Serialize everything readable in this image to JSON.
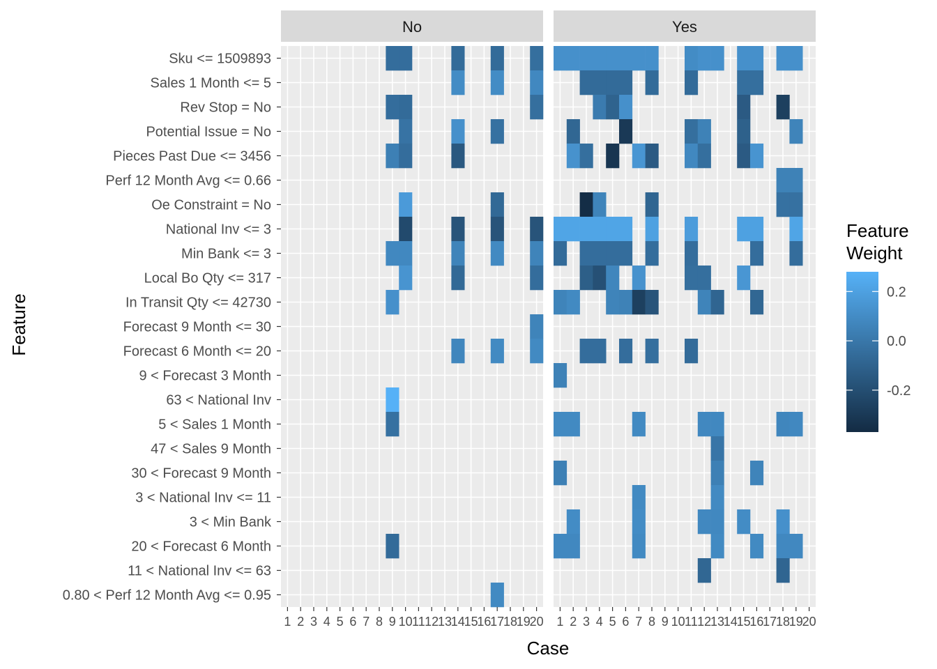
{
  "chart_data": {
    "type": "heatmap",
    "title": "",
    "xlabel": "Case",
    "ylabel": "Feature",
    "cases": [
      "1",
      "2",
      "3",
      "4",
      "5",
      "6",
      "7",
      "8",
      "9",
      "10",
      "11",
      "12",
      "13",
      "14",
      "15",
      "16",
      "17",
      "18",
      "19",
      "20"
    ],
    "features": [
      "Sku <= 1509893",
      "Sales 1 Month <= 5",
      "Rev Stop = No",
      "Potential Issue = No",
      "Pieces Past Due <= 3456",
      "Perf 12 Month Avg <= 0.66",
      "Oe Constraint = No",
      "National Inv <= 3",
      "Min Bank <= 3",
      "Local Bo Qty <= 317",
      "In Transit Qty <= 42730",
      "Forecast 9 Month <= 30",
      "Forecast 6 Month <= 20",
      "9 < Forecast 3 Month",
      "63 < National Inv",
      "5 < Sales 1 Month",
      "47 < Sales 9 Month",
      "30 < Forecast 9 Month",
      "3 < National Inv <= 11",
      "3 < Min Bank",
      "20 < Forecast 6 Month",
      "11 < National Inv <= 63",
      "0.80 < Perf 12 Month Avg <= 0.95"
    ],
    "panels": [
      {
        "label": "No",
        "cells": [
          [
            "Sku <= 1509893",
            9,
            -0.05
          ],
          [
            "Sku <= 1509893",
            10,
            -0.05
          ],
          [
            "Sku <= 1509893",
            14,
            -0.06
          ],
          [
            "Sku <= 1509893",
            17,
            -0.06
          ],
          [
            "Sku <= 1509893",
            20,
            -0.04
          ],
          [
            "Sales 1 Month <= 5",
            14,
            0.1
          ],
          [
            "Sales 1 Month <= 5",
            17,
            0.1
          ],
          [
            "Sales 1 Month <= 5",
            20,
            0.08
          ],
          [
            "Rev Stop = No",
            9,
            -0.05
          ],
          [
            "Rev Stop = No",
            10,
            -0.06
          ],
          [
            "Rev Stop = No",
            20,
            -0.04
          ],
          [
            "Potential Issue = No",
            10,
            -0.02
          ],
          [
            "Potential Issue = No",
            14,
            0.12
          ],
          [
            "Potential Issue = No",
            17,
            -0.03
          ],
          [
            "Pieces Past Due <= 3456",
            9,
            0.04
          ],
          [
            "Pieces Past Due <= 3456",
            10,
            -0.05
          ],
          [
            "Pieces Past Due <= 3456",
            14,
            -0.15
          ],
          [
            "Oe Constraint = No",
            10,
            0.17
          ],
          [
            "Oe Constraint = No",
            17,
            -0.07
          ],
          [
            "National Inv <= 3",
            10,
            -0.22
          ],
          [
            "National Inv <= 3",
            14,
            -0.17
          ],
          [
            "National Inv <= 3",
            17,
            -0.17
          ],
          [
            "National Inv <= 3",
            20,
            -0.17
          ],
          [
            "Min Bank <= 3",
            9,
            0.08
          ],
          [
            "Min Bank <= 3",
            10,
            0.08
          ],
          [
            "Min Bank <= 3",
            14,
            0.06
          ],
          [
            "Min Bank <= 3",
            17,
            0.09
          ],
          [
            "Min Bank <= 3",
            20,
            0.06
          ],
          [
            "Local Bo Qty <= 317",
            10,
            0.14
          ],
          [
            "Local Bo Qty <= 317",
            14,
            -0.07
          ],
          [
            "Local Bo Qty <= 317",
            20,
            -0.05
          ],
          [
            "In Transit Qty <= 42730",
            9,
            0.12
          ],
          [
            "Forecast 9 Month <= 30",
            20,
            0.06
          ],
          [
            "Forecast 6 Month <= 20",
            14,
            0.07
          ],
          [
            "Forecast 6 Month <= 20",
            17,
            0.09
          ],
          [
            "Forecast 6 Month <= 20",
            20,
            0.09
          ],
          [
            "63 < National Inv",
            9,
            0.28
          ],
          [
            "5 < Sales 1 Month",
            9,
            -0.03
          ],
          [
            "20 < Forecast 6 Month",
            9,
            -0.06
          ],
          [
            "0.80 < Perf 12 Month Avg <= 0.95",
            17,
            0.09
          ]
        ]
      },
      {
        "label": "Yes",
        "cells": [
          [
            "Sku <= 1509893",
            1,
            0.12
          ],
          [
            "Sku <= 1509893",
            2,
            0.12
          ],
          [
            "Sku <= 1509893",
            3,
            0.12
          ],
          [
            "Sku <= 1509893",
            4,
            0.12
          ],
          [
            "Sku <= 1509893",
            5,
            0.12
          ],
          [
            "Sku <= 1509893",
            6,
            0.12
          ],
          [
            "Sku <= 1509893",
            7,
            0.12
          ],
          [
            "Sku <= 1509893",
            8,
            0.12
          ],
          [
            "Sku <= 1509893",
            11,
            0.1
          ],
          [
            "Sku <= 1509893",
            12,
            0.12
          ],
          [
            "Sku <= 1509893",
            13,
            0.12
          ],
          [
            "Sku <= 1509893",
            15,
            0.12
          ],
          [
            "Sku <= 1509893",
            16,
            0.12
          ],
          [
            "Sku <= 1509893",
            18,
            0.12
          ],
          [
            "Sku <= 1509893",
            19,
            0.12
          ],
          [
            "Sales 1 Month <= 5",
            3,
            -0.06
          ],
          [
            "Sales 1 Month <= 5",
            4,
            -0.06
          ],
          [
            "Sales 1 Month <= 5",
            5,
            -0.06
          ],
          [
            "Sales 1 Month <= 5",
            6,
            -0.06
          ],
          [
            "Sales 1 Month <= 5",
            8,
            -0.06
          ],
          [
            "Sales 1 Month <= 5",
            11,
            -0.06
          ],
          [
            "Sales 1 Month <= 5",
            15,
            -0.04
          ],
          [
            "Sales 1 Month <= 5",
            16,
            -0.04
          ],
          [
            "Rev Stop = No",
            4,
            0.02
          ],
          [
            "Rev Stop = No",
            5,
            -0.1
          ],
          [
            "Rev Stop = No",
            6,
            0.12
          ],
          [
            "Rev Stop = No",
            15,
            -0.14
          ],
          [
            "Rev Stop = No",
            18,
            -0.27
          ],
          [
            "Potential Issue = No",
            2,
            -0.08
          ],
          [
            "Potential Issue = No",
            6,
            -0.3
          ],
          [
            "Potential Issue = No",
            11,
            -0.04
          ],
          [
            "Potential Issue = No",
            12,
            0.05
          ],
          [
            "Potential Issue = No",
            15,
            -0.11
          ],
          [
            "Potential Issue = No",
            19,
            0.06
          ],
          [
            "Pieces Past Due <= 3456",
            2,
            0.13
          ],
          [
            "Pieces Past Due <= 3456",
            3,
            -0.04
          ],
          [
            "Pieces Past Due <= 3456",
            5,
            -0.32
          ],
          [
            "Pieces Past Due <= 3456",
            7,
            0.15
          ],
          [
            "Pieces Past Due <= 3456",
            8,
            -0.14
          ],
          [
            "Pieces Past Due <= 3456",
            11,
            0.08
          ],
          [
            "Pieces Past Due <= 3456",
            12,
            -0.04
          ],
          [
            "Pieces Past Due <= 3456",
            15,
            -0.14
          ],
          [
            "Pieces Past Due <= 3456",
            16,
            0.14
          ],
          [
            "Perf 12 Month Avg <= 0.66",
            18,
            0.05
          ],
          [
            "Perf 12 Month Avg <= 0.66",
            19,
            0.05
          ],
          [
            "Oe Constraint = No",
            3,
            -0.36
          ],
          [
            "Oe Constraint = No",
            4,
            0.06
          ],
          [
            "Oe Constraint = No",
            8,
            -0.09
          ],
          [
            "Oe Constraint = No",
            18,
            -0.03
          ],
          [
            "Oe Constraint = No",
            19,
            -0.03
          ],
          [
            "National Inv <= 3",
            1,
            0.22
          ],
          [
            "National Inv <= 3",
            2,
            0.22
          ],
          [
            "National Inv <= 3",
            3,
            0.22
          ],
          [
            "National Inv <= 3",
            4,
            0.22
          ],
          [
            "National Inv <= 3",
            5,
            0.22
          ],
          [
            "National Inv <= 3",
            6,
            0.22
          ],
          [
            "National Inv <= 3",
            8,
            0.2
          ],
          [
            "National Inv <= 3",
            11,
            0.18
          ],
          [
            "National Inv <= 3",
            15,
            0.2
          ],
          [
            "National Inv <= 3",
            16,
            0.2
          ],
          [
            "National Inv <= 3",
            19,
            0.22
          ],
          [
            "Min Bank <= 3",
            1,
            -0.06
          ],
          [
            "Min Bank <= 3",
            3,
            -0.05
          ],
          [
            "Min Bank <= 3",
            4,
            -0.05
          ],
          [
            "Min Bank <= 3",
            5,
            -0.05
          ],
          [
            "Min Bank <= 3",
            6,
            -0.05
          ],
          [
            "Min Bank <= 3",
            8,
            -0.05
          ],
          [
            "Min Bank <= 3",
            11,
            -0.05
          ],
          [
            "Min Bank <= 3",
            16,
            -0.05
          ],
          [
            "Min Bank <= 3",
            19,
            -0.05
          ],
          [
            "Local Bo Qty <= 317",
            3,
            -0.12
          ],
          [
            "Local Bo Qty <= 317",
            4,
            -0.19
          ],
          [
            "Local Bo Qty <= 317",
            5,
            0.07
          ],
          [
            "Local Bo Qty <= 317",
            7,
            0.13
          ],
          [
            "Local Bo Qty <= 317",
            11,
            -0.04
          ],
          [
            "Local Bo Qty <= 317",
            12,
            -0.04
          ],
          [
            "Local Bo Qty <= 317",
            15,
            0.15
          ],
          [
            "In Transit Qty <= 42730",
            1,
            0.06
          ],
          [
            "In Transit Qty <= 42730",
            2,
            0.09
          ],
          [
            "In Transit Qty <= 42730",
            5,
            0.06
          ],
          [
            "In Transit Qty <= 42730",
            6,
            0.05
          ],
          [
            "In Transit Qty <= 42730",
            7,
            -0.27
          ],
          [
            "In Transit Qty <= 42730",
            8,
            -0.17
          ],
          [
            "In Transit Qty <= 42730",
            12,
            0.06
          ],
          [
            "In Transit Qty <= 42730",
            13,
            -0.09
          ],
          [
            "In Transit Qty <= 42730",
            16,
            -0.08
          ],
          [
            "Forecast 6 Month <= 20",
            3,
            -0.05
          ],
          [
            "Forecast 6 Month <= 20",
            4,
            -0.05
          ],
          [
            "Forecast 6 Month <= 20",
            6,
            -0.05
          ],
          [
            "Forecast 6 Month <= 20",
            8,
            -0.04
          ],
          [
            "Forecast 6 Month <= 20",
            11,
            -0.06
          ],
          [
            "9 < Forecast 3 Month",
            1,
            0.05
          ],
          [
            "5 < Sales 1 Month",
            1,
            0.09
          ],
          [
            "5 < Sales 1 Month",
            2,
            0.09
          ],
          [
            "5 < Sales 1 Month",
            7,
            0.09
          ],
          [
            "5 < Sales 1 Month",
            12,
            0.08
          ],
          [
            "5 < Sales 1 Month",
            13,
            0.08
          ],
          [
            "5 < Sales 1 Month",
            18,
            0.07
          ],
          [
            "5 < Sales 1 Month",
            19,
            0.08
          ],
          [
            "47 < Sales 9 Month",
            13,
            -0.01
          ],
          [
            "30 < Forecast 9 Month",
            1,
            0.04
          ],
          [
            "30 < Forecast 9 Month",
            13,
            0.04
          ],
          [
            "30 < Forecast 9 Month",
            16,
            0.06
          ],
          [
            "3 < National Inv <= 11",
            7,
            0.09
          ],
          [
            "3 < National Inv <= 11",
            13,
            0.09
          ],
          [
            "3 < Min Bank",
            2,
            0.1
          ],
          [
            "3 < Min Bank",
            7,
            0.1
          ],
          [
            "3 < Min Bank",
            12,
            0.08
          ],
          [
            "3 < Min Bank",
            13,
            0.08
          ],
          [
            "3 < Min Bank",
            15,
            0.1
          ],
          [
            "3 < Min Bank",
            18,
            0.12
          ],
          [
            "20 < Forecast 6 Month",
            1,
            0.08
          ],
          [
            "20 < Forecast 6 Month",
            2,
            0.08
          ],
          [
            "20 < Forecast 6 Month",
            7,
            0.09
          ],
          [
            "20 < Forecast 6 Month",
            13,
            0.09
          ],
          [
            "20 < Forecast 6 Month",
            16,
            0.09
          ],
          [
            "20 < Forecast 6 Month",
            18,
            0.08
          ],
          [
            "20 < Forecast 6 Month",
            19,
            0.08
          ],
          [
            "11 < National Inv <= 63",
            12,
            -0.08
          ],
          [
            "11 < National Inv <= 63",
            18,
            -0.09
          ]
        ]
      }
    ],
    "legend": {
      "title_lines": [
        "Feature",
        "Weight"
      ],
      "ticks": [
        "0.2",
        "0.0",
        "-0.2"
      ],
      "tick_values": [
        0.2,
        0.0,
        -0.2
      ],
      "min": -0.37,
      "max": 0.28,
      "low_color": "#132B43",
      "high_color": "#56B1F7",
      "placement": "right"
    },
    "grid": true,
    "panel_background": "#EBEBEB",
    "strip_background": "#D9D9D9"
  }
}
